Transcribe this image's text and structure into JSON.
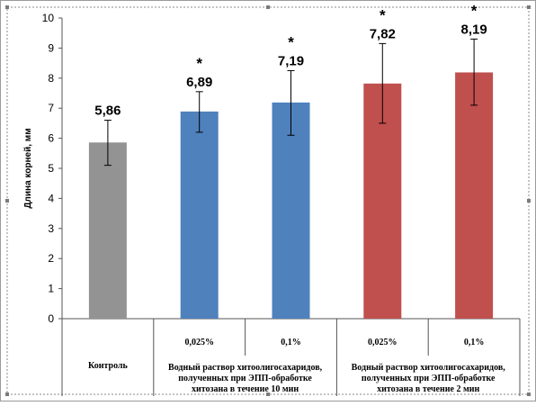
{
  "chart_data": {
    "type": "bar",
    "ylabel": "Длина корней, мм",
    "ylim": [
      0,
      10
    ],
    "yticks": [
      0,
      1,
      2,
      3,
      4,
      5,
      6,
      7,
      8,
      9,
      10
    ],
    "bars": [
      {
        "value": 5.86,
        "label": "5,86",
        "error_low": 5.1,
        "error_high": 6.6,
        "significant": false,
        "color": "#939393"
      },
      {
        "value": 6.89,
        "label": "6,89",
        "error_low": 6.2,
        "error_high": 7.55,
        "significant": true,
        "color": "#4f81bd"
      },
      {
        "value": 7.19,
        "label": "7,19",
        "error_low": 6.1,
        "error_high": 8.25,
        "significant": true,
        "color": "#4f81bd"
      },
      {
        "value": 7.82,
        "label": "7,82",
        "error_low": 6.5,
        "error_high": 9.15,
        "significant": true,
        "color": "#c0504d"
      },
      {
        "value": 8.19,
        "label": "8,19",
        "error_low": 7.1,
        "error_high": 9.3,
        "significant": true,
        "color": "#c0504d"
      }
    ],
    "significance_marker": "*",
    "sub_categories": [
      "",
      "0,025%",
      "0,1%",
      "0,025%",
      "0,1%"
    ],
    "group_labels": [
      {
        "lines": [
          "Контроль"
        ]
      },
      {
        "lines": [
          "Водный раствор хитоолигосахаридов,",
          "полученных при ЭПП-обработке",
          "хитозана в течение 10 мин"
        ]
      },
      {
        "lines": [
          "Водный раствор хитоолигосахаридов,",
          "полученных при ЭПП-обработке",
          "хитозана в течение 2 мин"
        ]
      }
    ],
    "grid": false,
    "legend": "none"
  }
}
